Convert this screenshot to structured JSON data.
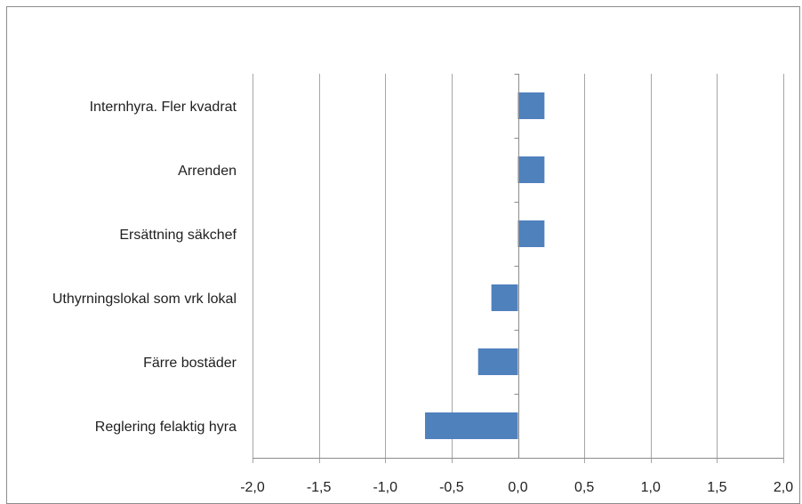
{
  "chart_data": {
    "type": "bar",
    "orientation": "horizontal",
    "categories": [
      "Internhyra. Fler kvadrat",
      "Arrenden",
      "Ersättning säkchef",
      "Uthyrningslokal som vrk lokal",
      "Färre bostäder",
      "Reglering felaktig hyra"
    ],
    "values": [
      0.2,
      0.2,
      0.2,
      -0.2,
      -0.3,
      -0.7
    ],
    "xlim": [
      -2.0,
      2.0
    ],
    "x_ticks": [
      -2.0,
      -1.5,
      -1.0,
      -0.5,
      0.0,
      0.5,
      1.0,
      1.5,
      2.0
    ],
    "x_tick_labels": [
      "-2,0",
      "-1,5",
      "-1,0",
      "-0,5",
      "0,0",
      "0,5",
      "1,0",
      "1,5",
      "2,0"
    ],
    "title": "",
    "xlabel": "",
    "ylabel": "",
    "grid": "vertical",
    "legend": "none",
    "colors": {
      "bar": "#4f81bd",
      "grid": "#a6a6a6",
      "axis": "#8c8c8c"
    }
  }
}
